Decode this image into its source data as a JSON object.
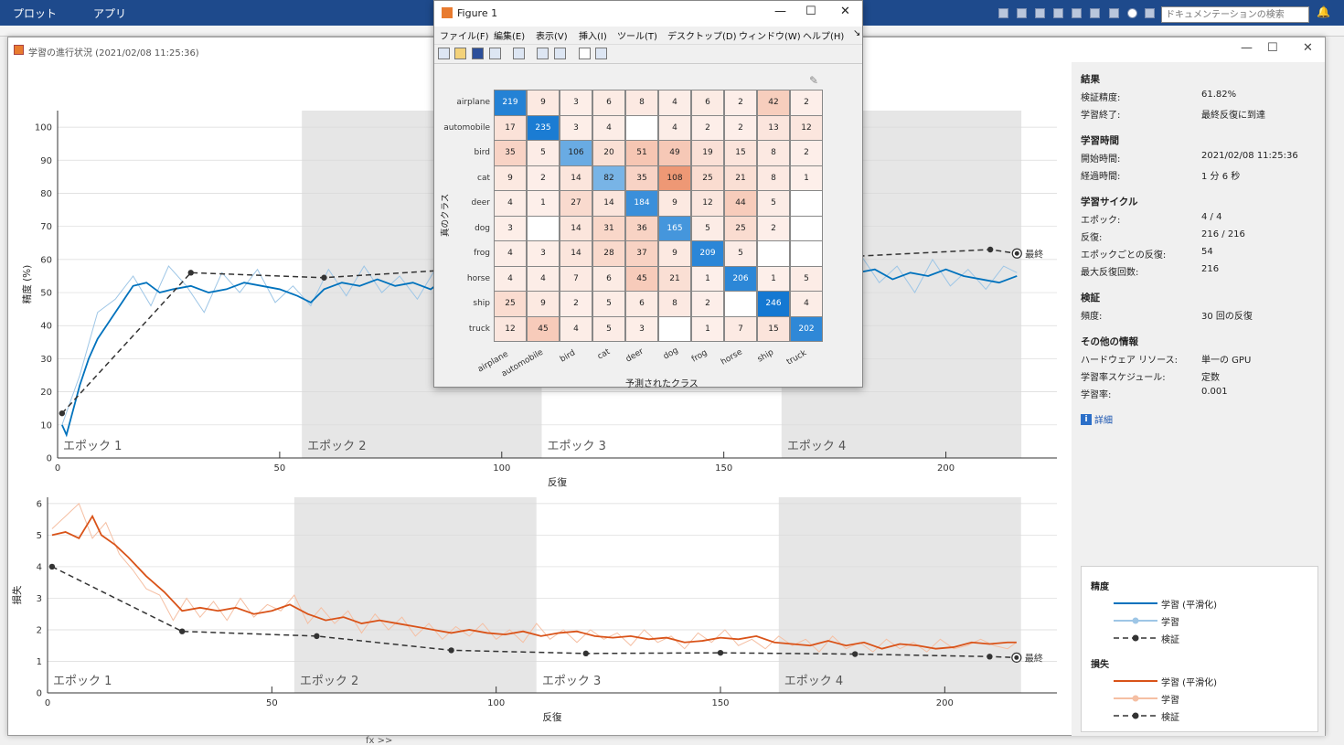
{
  "matlab": {
    "tabs": [
      "プロット",
      "アプリ"
    ],
    "search_placeholder": "ドキュメンテーションの検索",
    "fx_label": "fx >>"
  },
  "progress": {
    "title": "学習の進行状況 (2021/02/08 11:25:36)",
    "accuracy_ylabel": "精度 (%)",
    "loss_ylabel": "損失",
    "xlabel": "反復",
    "epochs": [
      "エポック 1",
      "エポック 2",
      "エポック 3",
      "エポック 4"
    ],
    "final_label": "最終"
  },
  "results": {
    "sections": [
      {
        "title": "結果",
        "rows": [
          [
            "検証精度:",
            "61.82%"
          ],
          [
            "学習終了:",
            "最終反復に到達"
          ]
        ]
      },
      {
        "title": "学習時間",
        "rows": [
          [
            "開始時間:",
            "2021/02/08 11:25:36"
          ],
          [
            "経過時間:",
            "1 分 6 秒"
          ]
        ]
      },
      {
        "title": "学習サイクル",
        "rows": [
          [
            "エポック:",
            "4 / 4"
          ],
          [
            "反復:",
            "216 / 216"
          ],
          [
            "エポックごとの反復:",
            "54"
          ],
          [
            "最大反復回数:",
            "216"
          ]
        ]
      },
      {
        "title": "検証",
        "rows": [
          [
            "頻度:",
            "30 回の反復"
          ]
        ]
      },
      {
        "title": "その他の情報",
        "rows": [
          [
            "ハードウェア リソース:",
            "単一の GPU"
          ],
          [
            "学習率スケジュール:",
            "定数"
          ],
          [
            "学習率:",
            "0.001"
          ]
        ]
      }
    ],
    "details_link": "詳細"
  },
  "legend": {
    "acc_title": "精度",
    "loss_title": "損失",
    "items": [
      "学習 (平滑化)",
      "学習",
      "検証"
    ]
  },
  "figure1": {
    "title": "Figure 1",
    "menus": [
      "ファイル(F)",
      "編集(E)",
      "表示(V)",
      "挿入(I)",
      "ツール(T)",
      "デスクトップ(D)",
      "ウィンドウ(W)",
      "ヘルプ(H)"
    ],
    "ylabel": "真のクラス",
    "xlabel": "予測されたクラス"
  },
  "colors": {
    "acc": "#0072bd",
    "acc_raw": "#9ec6e6",
    "loss": "#d95319",
    "loss_raw": "#f5bfa3",
    "val": "#333333"
  },
  "chart_data": [
    {
      "type": "line",
      "title": "",
      "xlabel": "反復",
      "ylabel": "精度 (%)",
      "xlim": [
        0,
        225
      ],
      "ylim": [
        0,
        105
      ],
      "xticks": [
        0,
        50,
        100,
        150,
        200
      ],
      "yticks": [
        0,
        10,
        20,
        30,
        40,
        50,
        60,
        70,
        80,
        90,
        100
      ],
      "epoch_boundaries": [
        0,
        55,
        109,
        163,
        217
      ],
      "series": [
        {
          "name": "学習 (平滑化)",
          "x": [
            1,
            2,
            3,
            5,
            7,
            9,
            11,
            13,
            15,
            17,
            20,
            23,
            26,
            30,
            34,
            38,
            42,
            46,
            50,
            54,
            57,
            60,
            64,
            68,
            72,
            76,
            80,
            84,
            88,
            92,
            96,
            100,
            104,
            108,
            112,
            116,
            120,
            124,
            128,
            132,
            136,
            140,
            144,
            148,
            152,
            156,
            160,
            164,
            168,
            172,
            176,
            180,
            184,
            188,
            192,
            196,
            200,
            204,
            208,
            212,
            216
          ],
          "values": [
            10,
            7,
            12,
            22,
            30,
            36,
            40,
            44,
            48,
            52,
            53,
            50,
            51,
            52,
            50,
            51,
            53,
            52,
            51,
            49,
            47,
            51,
            53,
            52,
            54,
            52,
            53,
            51,
            55,
            54,
            53,
            55,
            54,
            56,
            54,
            55,
            53,
            55,
            56,
            54,
            56,
            57,
            55,
            56,
            57,
            56,
            55,
            56,
            55,
            56,
            54,
            56,
            57,
            54,
            56,
            55,
            57,
            55,
            54,
            53,
            55
          ]
        },
        {
          "name": "学習",
          "x": [
            1,
            5,
            9,
            13,
            17,
            21,
            25,
            29,
            33,
            37,
            41,
            45,
            49,
            53,
            57,
            61,
            65,
            69,
            73,
            77,
            81,
            85,
            89,
            93,
            97,
            101,
            105,
            109,
            113,
            117,
            121,
            125,
            129,
            133,
            137,
            141,
            145,
            149,
            153,
            157,
            161,
            165,
            169,
            173,
            177,
            181,
            185,
            189,
            193,
            197,
            201,
            205,
            209,
            213,
            216
          ],
          "values": [
            10,
            25,
            44,
            48,
            55,
            46,
            58,
            52,
            44,
            56,
            50,
            57,
            47,
            52,
            46,
            57,
            49,
            58,
            50,
            55,
            48,
            57,
            52,
            59,
            50,
            56,
            52,
            61,
            50,
            57,
            53,
            60,
            51,
            58,
            52,
            62,
            51,
            57,
            55,
            60,
            51,
            58,
            53,
            59,
            50,
            61,
            53,
            58,
            50,
            60,
            52,
            57,
            51,
            58,
            56
          ]
        },
        {
          "name": "検証",
          "x": [
            1,
            30,
            60,
            90,
            120,
            150,
            180,
            210,
            216
          ],
          "values": [
            13.5,
            56,
            54.5,
            57,
            59,
            60,
            61,
            63,
            61.82
          ]
        }
      ]
    },
    {
      "type": "line",
      "title": "",
      "xlabel": "反復",
      "ylabel": "損失",
      "xlim": [
        0,
        225
      ],
      "ylim": [
        0,
        6.2
      ],
      "xticks": [
        0,
        50,
        100,
        150,
        200
      ],
      "yticks": [
        0,
        1,
        2,
        3,
        4,
        5,
        6
      ],
      "epoch_boundaries": [
        0,
        55,
        109,
        163,
        217
      ],
      "series": [
        {
          "name": "学習 (平滑化)",
          "x": [
            1,
            4,
            7,
            10,
            12,
            15,
            18,
            22,
            26,
            30,
            34,
            38,
            42,
            46,
            50,
            54,
            58,
            62,
            66,
            70,
            74,
            78,
            82,
            86,
            90,
            94,
            98,
            102,
            106,
            110,
            114,
            118,
            122,
            126,
            130,
            134,
            138,
            142,
            146,
            150,
            154,
            158,
            162,
            166,
            170,
            174,
            178,
            182,
            186,
            190,
            194,
            198,
            202,
            206,
            210,
            214,
            216
          ],
          "values": [
            5.0,
            5.1,
            4.9,
            5.6,
            5.0,
            4.7,
            4.3,
            3.7,
            3.2,
            2.6,
            2.7,
            2.6,
            2.7,
            2.5,
            2.6,
            2.8,
            2.5,
            2.3,
            2.4,
            2.2,
            2.3,
            2.2,
            2.1,
            2.0,
            1.9,
            2.0,
            1.9,
            1.85,
            1.95,
            1.8,
            1.9,
            1.95,
            1.8,
            1.75,
            1.8,
            1.7,
            1.75,
            1.6,
            1.65,
            1.75,
            1.7,
            1.8,
            1.6,
            1.55,
            1.5,
            1.65,
            1.5,
            1.6,
            1.4,
            1.55,
            1.5,
            1.4,
            1.45,
            1.6,
            1.55,
            1.6,
            1.6
          ]
        },
        {
          "name": "学習",
          "x": [
            1,
            4,
            7,
            10,
            13,
            16,
            19,
            22,
            25,
            28,
            31,
            34,
            37,
            40,
            43,
            46,
            49,
            52,
            55,
            58,
            61,
            64,
            67,
            70,
            73,
            76,
            79,
            82,
            85,
            88,
            91,
            94,
            97,
            100,
            103,
            106,
            109,
            112,
            115,
            118,
            121,
            124,
            127,
            130,
            133,
            136,
            139,
            142,
            145,
            148,
            151,
            154,
            157,
            160,
            163,
            166,
            169,
            172,
            175,
            178,
            181,
            184,
            187,
            190,
            193,
            196,
            199,
            202,
            205,
            208,
            211,
            214,
            216
          ],
          "values": [
            5.2,
            5.6,
            6.0,
            4.9,
            5.4,
            4.4,
            3.9,
            3.3,
            3.1,
            2.3,
            3.0,
            2.4,
            2.9,
            2.3,
            3.0,
            2.4,
            2.8,
            2.6,
            3.1,
            2.2,
            2.7,
            2.2,
            2.6,
            1.9,
            2.5,
            2.0,
            2.4,
            1.8,
            2.2,
            1.7,
            2.1,
            1.8,
            2.2,
            1.7,
            2.0,
            1.6,
            2.2,
            1.7,
            2.0,
            1.6,
            2.0,
            1.7,
            1.9,
            1.5,
            2.0,
            1.6,
            1.8,
            1.4,
            1.9,
            1.6,
            2.0,
            1.5,
            1.7,
            1.4,
            1.8,
            1.5,
            1.7,
            1.3,
            1.8,
            1.4,
            1.6,
            1.3,
            1.7,
            1.4,
            1.6,
            1.3,
            1.7,
            1.4,
            1.5,
            1.7,
            1.5,
            1.4,
            1.6
          ]
        },
        {
          "name": "検証",
          "x": [
            1,
            30,
            60,
            90,
            120,
            150,
            180,
            210,
            216
          ],
          "values": [
            4.0,
            1.95,
            1.8,
            1.35,
            1.25,
            1.27,
            1.23,
            1.15,
            1.12
          ]
        }
      ]
    },
    {
      "type": "heatmap",
      "title": "",
      "xlabel": "予測されたクラス",
      "ylabel": "真のクラス",
      "classes": [
        "airplane",
        "automobile",
        "bird",
        "cat",
        "deer",
        "dog",
        "frog",
        "horse",
        "ship",
        "truck"
      ],
      "matrix": [
        [
          219,
          9,
          3,
          6,
          8,
          4,
          6,
          2,
          42,
          2
        ],
        [
          17,
          235,
          3,
          4,
          null,
          4,
          2,
          2,
          13,
          12
        ],
        [
          35,
          5,
          106,
          20,
          51,
          49,
          19,
          15,
          8,
          2
        ],
        [
          9,
          2,
          14,
          82,
          35,
          108,
          25,
          21,
          8,
          1
        ],
        [
          4,
          1,
          27,
          14,
          184,
          9,
          12,
          44,
          5,
          null
        ],
        [
          3,
          null,
          14,
          31,
          36,
          165,
          5,
          25,
          2,
          null
        ],
        [
          4,
          3,
          14,
          28,
          37,
          9,
          209,
          5,
          null,
          null
        ],
        [
          4,
          4,
          7,
          6,
          45,
          21,
          1,
          206,
          1,
          5
        ],
        [
          25,
          9,
          2,
          5,
          6,
          8,
          2,
          null,
          246,
          4
        ],
        [
          12,
          45,
          4,
          5,
          3,
          null,
          1,
          7,
          15,
          202
        ]
      ]
    }
  ]
}
